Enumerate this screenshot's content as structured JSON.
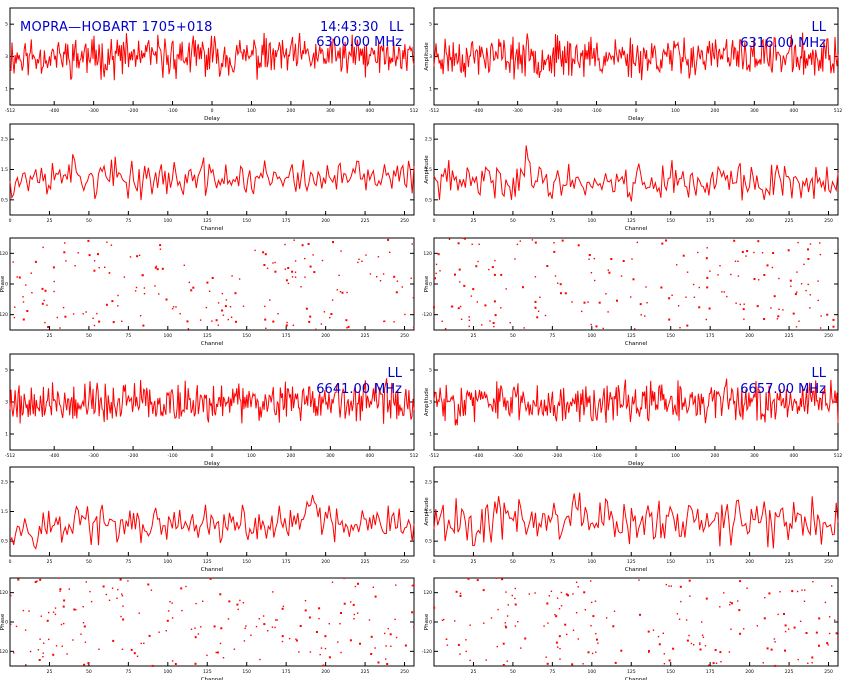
{
  "header": {
    "source": "MOPRA—HOBART 1705+018",
    "time": "14:43:30",
    "polarization": "LL"
  },
  "colors": {
    "trace": "#ff0000",
    "annotation": "#0000cc",
    "frame": "#000000",
    "background": "#ffffff"
  },
  "chart_data": [
    {
      "type": "line",
      "kind": "delay",
      "row": 0,
      "col": 0,
      "xlabel": "Delay",
      "ylabel": "",
      "label_lines": [],
      "xlim": [
        -512,
        512
      ],
      "ylim": [
        0,
        6
      ],
      "x_ticks": [
        -512,
        -400,
        -300,
        -200,
        -100,
        0,
        100,
        200,
        300,
        400,
        512
      ],
      "y_ticks": [
        1,
        3,
        5
      ],
      "num_points": 400,
      "level": 3.0,
      "spread": 0.7,
      "seed": 11,
      "peaks": []
    },
    {
      "type": "line",
      "kind": "delay",
      "row": 0,
      "col": 1,
      "xlabel": "Delay",
      "ylabel": "Amplitude",
      "label_lines": [
        "LL",
        "6316.00 MHz"
      ],
      "xlim": [
        -512,
        512
      ],
      "ylim": [
        0,
        6
      ],
      "x_ticks": [
        -512,
        -400,
        -300,
        -200,
        -100,
        0,
        100,
        200,
        300,
        400,
        512
      ],
      "y_ticks": [
        1,
        3,
        5
      ],
      "num_points": 400,
      "level": 3.0,
      "spread": 0.7,
      "seed": 23,
      "peaks": []
    },
    {
      "type": "line",
      "kind": "channel",
      "row": 1,
      "col": 0,
      "xlabel": "Channel",
      "ylabel": "",
      "label_lines": [],
      "xlim": [
        0,
        256
      ],
      "ylim": [
        0,
        3
      ],
      "x_ticks": [
        0,
        25,
        50,
        75,
        100,
        125,
        150,
        175,
        200,
        225,
        250
      ],
      "y_ticks": [
        0.5,
        1.5,
        2.5
      ],
      "num_points": 220,
      "level": 1.2,
      "spread": 0.35,
      "seed": 37,
      "peaks": [
        [
          36,
          0.5
        ]
      ]
    },
    {
      "type": "line",
      "kind": "channel",
      "row": 1,
      "col": 1,
      "xlabel": "Channel",
      "ylabel": "Amplitude",
      "label_lines": [],
      "xlim": [
        0,
        256
      ],
      "ylim": [
        0,
        3
      ],
      "x_ticks": [
        0,
        25,
        50,
        75,
        100,
        125,
        150,
        175,
        200,
        225,
        250
      ],
      "y_ticks": [
        0.5,
        1.5,
        2.5
      ],
      "num_points": 220,
      "level": 1.1,
      "spread": 0.35,
      "seed": 41,
      "peaks": [
        [
          60,
          0.7
        ]
      ]
    },
    {
      "type": "scatter",
      "kind": "phase",
      "row": 2,
      "col": 0,
      "xlabel": "Channel",
      "ylabel": "Phase",
      "label_lines": [],
      "xlim": [
        0,
        256
      ],
      "ylim": [
        -180,
        180
      ],
      "x_ticks": [
        25,
        50,
        75,
        100,
        125,
        150,
        175,
        200,
        225,
        250
      ],
      "y_ticks": [
        -120,
        0,
        120
      ],
      "num_points": 190,
      "seed": 53
    },
    {
      "type": "scatter",
      "kind": "phase",
      "row": 2,
      "col": 1,
      "xlabel": "Channel",
      "ylabel": "Phase",
      "label_lines": [],
      "xlim": [
        0,
        256
      ],
      "ylim": [
        -180,
        180
      ],
      "x_ticks": [
        25,
        50,
        75,
        100,
        125,
        150,
        175,
        200,
        225,
        250
      ],
      "y_ticks": [
        -120,
        0,
        120
      ],
      "num_points": 190,
      "seed": 67
    },
    {
      "type": "line",
      "kind": "delay",
      "row": 3,
      "col": 0,
      "xlabel": "Delay",
      "ylabel": "",
      "label_lines": [
        "LL",
        "6641.00 MHz"
      ],
      "xlim": [
        -512,
        512
      ],
      "ylim": [
        0,
        6
      ],
      "x_ticks": [
        -512,
        -400,
        -300,
        -200,
        -100,
        0,
        100,
        200,
        300,
        400,
        512
      ],
      "y_ticks": [
        1,
        3,
        5
      ],
      "num_points": 400,
      "level": 3.0,
      "spread": 0.7,
      "seed": 79,
      "peaks": []
    },
    {
      "type": "line",
      "kind": "delay",
      "row": 3,
      "col": 1,
      "xlabel": "Delay",
      "ylabel": "Amplitude",
      "label_lines": [
        "LL",
        "6657.00 MHz"
      ],
      "xlim": [
        -512,
        512
      ],
      "ylim": [
        0,
        6
      ],
      "x_ticks": [
        -512,
        -400,
        -300,
        -200,
        -100,
        0,
        100,
        200,
        300,
        400,
        512
      ],
      "y_ticks": [
        1,
        3,
        5
      ],
      "num_points": 400,
      "level": 3.0,
      "spread": 0.7,
      "seed": 83,
      "peaks": []
    },
    {
      "type": "line",
      "kind": "channel",
      "row": 4,
      "col": 0,
      "xlabel": "Channel",
      "ylabel": "",
      "label_lines": [],
      "xlim": [
        0,
        256
      ],
      "ylim": [
        0,
        3
      ],
      "x_ticks": [
        0,
        25,
        50,
        75,
        100,
        125,
        150,
        175,
        200,
        225,
        250
      ],
      "y_ticks": [
        0.5,
        1.5,
        2.5
      ],
      "num_points": 220,
      "level": 1.0,
      "spread": 0.35,
      "seed": 97,
      "peaks": [
        [
          191,
          1.3
        ],
        [
          44,
          0.6
        ]
      ]
    },
    {
      "type": "line",
      "kind": "channel",
      "row": 4,
      "col": 1,
      "xlabel": "Channel",
      "ylabel": "Amplitude",
      "label_lines": [],
      "xlim": [
        0,
        256
      ],
      "ylim": [
        0,
        3
      ],
      "x_ticks": [
        0,
        25,
        50,
        75,
        100,
        125,
        150,
        175,
        200,
        225,
        250
      ],
      "y_ticks": [
        0.5,
        1.5,
        2.5
      ],
      "num_points": 220,
      "level": 1.2,
      "spread": 0.45,
      "seed": 101,
      "peaks": [
        [
          90,
          0.6
        ]
      ]
    },
    {
      "type": "scatter",
      "kind": "phase",
      "row": 5,
      "col": 0,
      "xlabel": "Channel",
      "ylabel": "Phase",
      "label_lines": [],
      "xlim": [
        0,
        256
      ],
      "ylim": [
        -180,
        180
      ],
      "x_ticks": [
        25,
        50,
        75,
        100,
        125,
        150,
        175,
        200,
        225,
        250
      ],
      "y_ticks": [
        -120,
        0,
        120
      ],
      "num_points": 190,
      "seed": 113
    },
    {
      "type": "scatter",
      "kind": "phase",
      "row": 5,
      "col": 1,
      "xlabel": "Channel",
      "ylabel": "Phase",
      "label_lines": [],
      "xlim": [
        0,
        256
      ],
      "ylim": [
        -180,
        180
      ],
      "x_ticks": [
        25,
        50,
        75,
        100,
        125,
        150,
        175,
        200,
        225,
        250
      ],
      "y_ticks": [
        -120,
        0,
        120
      ],
      "num_points": 190,
      "seed": 127
    }
  ]
}
